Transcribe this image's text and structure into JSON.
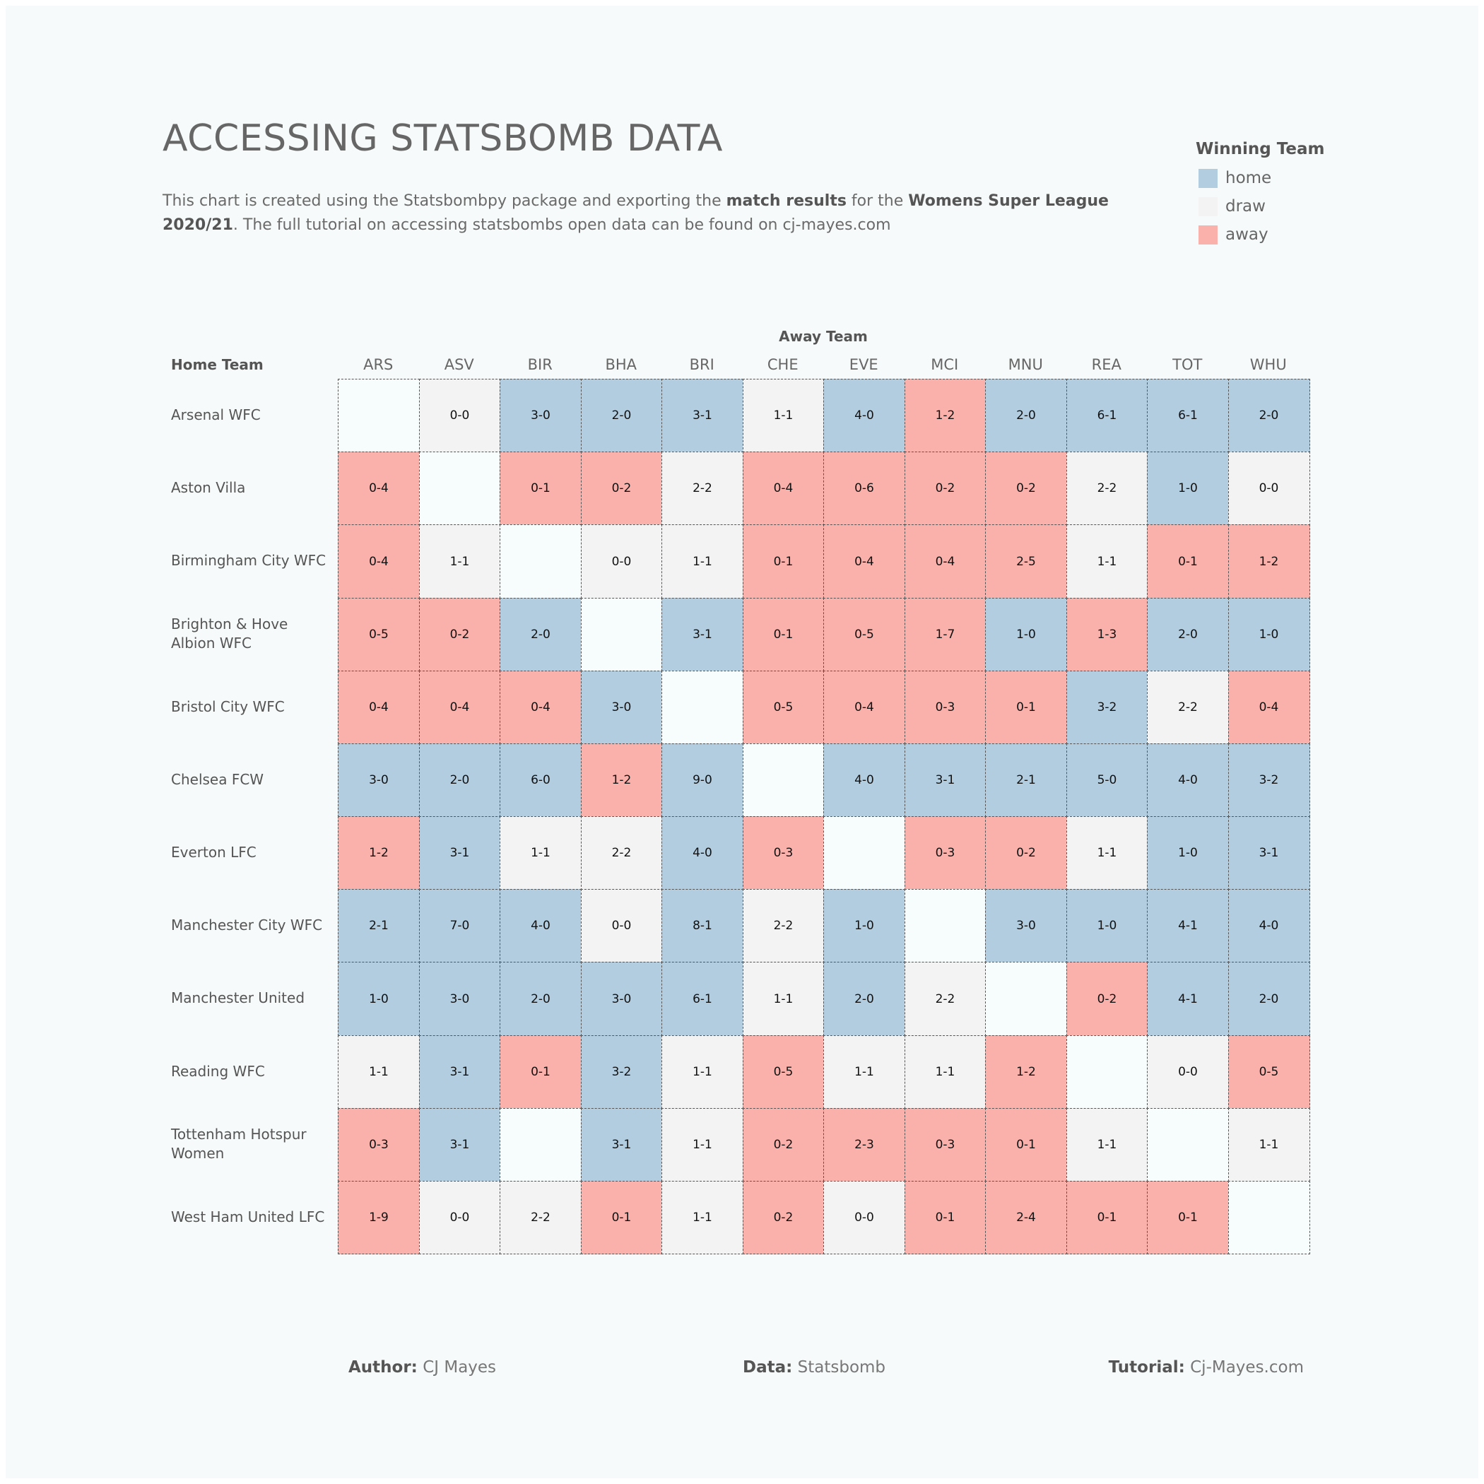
{
  "title": "ACCESSING STATSBOMB DATA",
  "subtitle": {
    "part1": "This chart is created using the Statsbombpy package and exporting the ",
    "bold1": "match results",
    "part2": " for the ",
    "bold2": "Womens Super League 2020/21",
    "part3": ". The full tutorial on accessing statsbombs open data can be found on cj-mayes.com"
  },
  "legend": {
    "title": "Winning Team",
    "items": [
      {
        "label": "home",
        "color": "#b3cde0"
      },
      {
        "label": "draw",
        "color": "#f3f3f3"
      },
      {
        "label": "away",
        "color": "#fbb1ab"
      }
    ]
  },
  "footer": {
    "author_label": "Author:",
    "author_value": " CJ Mayes",
    "data_label": "Data:",
    "data_value": " Statsbomb",
    "tutorial_label": "Tutorial:",
    "tutorial_value": " Cj-Mayes.com"
  },
  "chart_data": {
    "type": "heatmap",
    "xlabel": "Away Team",
    "ylabel": "Home Team",
    "columns": [
      "ARS",
      "ASV",
      "BIR",
      "BHA",
      "BRI",
      "CHE",
      "EVE",
      "MCI",
      "MNU",
      "REA",
      "TOT",
      "WHU"
    ],
    "rows": [
      "Arsenal WFC",
      "Aston Villa",
      "Birmingham City WFC",
      "Brighton & Hove Albion WFC",
      "Bristol City WFC",
      "Chelsea FCW",
      "Everton LFC",
      "Manchester City WFC",
      "Manchester United",
      "Reading WFC",
      "Tottenham Hotspur Women",
      "West Ham United LFC"
    ],
    "scores": [
      [
        "",
        "0-0",
        "3-0",
        "2-0",
        "3-1",
        "1-1",
        "4-0",
        "1-2",
        "2-0",
        "6-1",
        "6-1",
        "2-0"
      ],
      [
        "0-4",
        "",
        "0-1",
        "0-2",
        "2-2",
        "0-4",
        "0-6",
        "0-2",
        "0-2",
        "2-2",
        "1-0",
        "0-0"
      ],
      [
        "0-4",
        "1-1",
        "",
        "0-0",
        "1-1",
        "0-1",
        "0-4",
        "0-4",
        "2-5",
        "1-1",
        "0-1",
        "1-2"
      ],
      [
        "0-5",
        "0-2",
        "2-0",
        "",
        "3-1",
        "0-1",
        "0-5",
        "1-7",
        "1-0",
        "1-3",
        "2-0",
        "1-0"
      ],
      [
        "0-4",
        "0-4",
        "0-4",
        "3-0",
        "",
        "0-5",
        "0-4",
        "0-3",
        "0-1",
        "3-2",
        "2-2",
        "0-4"
      ],
      [
        "3-0",
        "2-0",
        "6-0",
        "1-2",
        "9-0",
        "",
        "4-0",
        "3-1",
        "2-1",
        "5-0",
        "4-0",
        "3-2"
      ],
      [
        "1-2",
        "3-1",
        "1-1",
        "2-2",
        "4-0",
        "0-3",
        "",
        "0-3",
        "0-2",
        "1-1",
        "1-0",
        "3-1"
      ],
      [
        "2-1",
        "7-0",
        "4-0",
        "0-0",
        "8-1",
        "2-2",
        "1-0",
        "",
        "3-0",
        "1-0",
        "4-1",
        "4-0"
      ],
      [
        "1-0",
        "3-0",
        "2-0",
        "3-0",
        "6-1",
        "1-1",
        "2-0",
        "2-2",
        "",
        "0-2",
        "4-1",
        "2-0"
      ],
      [
        "1-1",
        "3-1",
        "0-1",
        "3-2",
        "1-1",
        "0-5",
        "1-1",
        "1-1",
        "1-2",
        "",
        "0-0",
        "0-5"
      ],
      [
        "0-3",
        "3-1",
        "",
        "3-1",
        "1-1",
        "0-2",
        "2-3",
        "0-3",
        "0-1",
        "1-1",
        "",
        "1-1"
      ],
      [
        "1-9",
        "0-0",
        "2-2",
        "0-1",
        "1-1",
        "0-2",
        "0-0",
        "0-1",
        "2-4",
        "0-1",
        "0-1",
        ""
      ]
    ],
    "empty_color": "#f7fcfc"
  }
}
